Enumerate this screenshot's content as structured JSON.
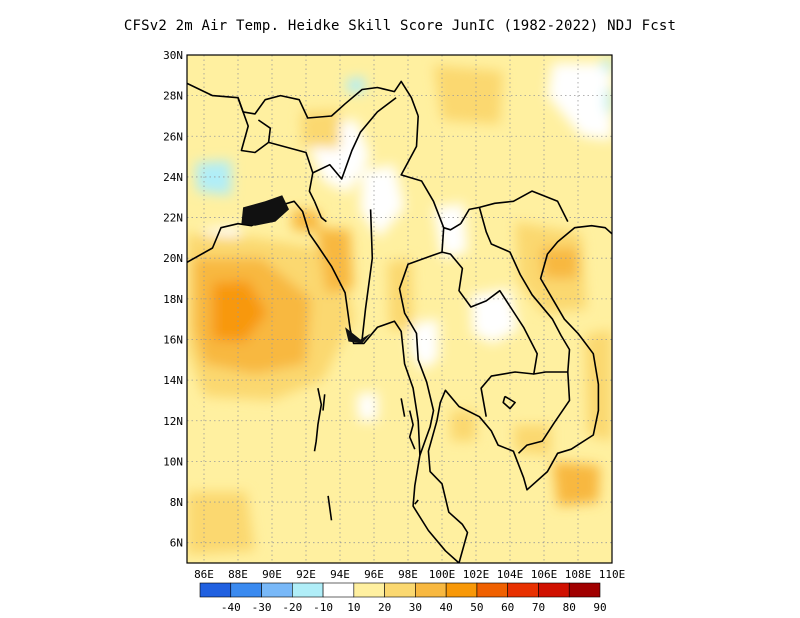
{
  "title": "CFSv2  2m Air Temp. Heidke Skill Score JunIC (1982-2022) NDJ Fcst",
  "map": {
    "lon_range": [
      85,
      110
    ],
    "lat_range": [
      5,
      30
    ],
    "lon_ticks": [
      "86E",
      "88E",
      "90E",
      "92E",
      "94E",
      "96E",
      "98E",
      "100E",
      "102E",
      "104E",
      "106E",
      "108E",
      "110E"
    ],
    "lat_ticks": [
      "30N",
      "28N",
      "26N",
      "24N",
      "22N",
      "20N",
      "18N",
      "16N",
      "14N",
      "12N",
      "10N",
      "8N",
      "6N"
    ],
    "grid": "dotted"
  },
  "colorbar": {
    "labels": [
      "-40",
      "-30",
      "-20",
      "-10",
      "10",
      "20",
      "30",
      "40",
      "50",
      "60",
      "70",
      "80",
      "90"
    ],
    "colors": [
      "#2060e0",
      "#3a8af0",
      "#78b8f8",
      "#b0eef8",
      "#ffffff",
      "#fff0a0",
      "#fbd870",
      "#f8b840",
      "#f89808",
      "#f06000",
      "#e83000",
      "#d01000",
      "#a00000"
    ]
  },
  "field_colors": {
    "white": "#ffffff",
    "pale": "#fff0a0",
    "light": "#fbd870",
    "mid": "#f8b840",
    "strong": "#f89808",
    "cyan": "#b0eef8"
  }
}
